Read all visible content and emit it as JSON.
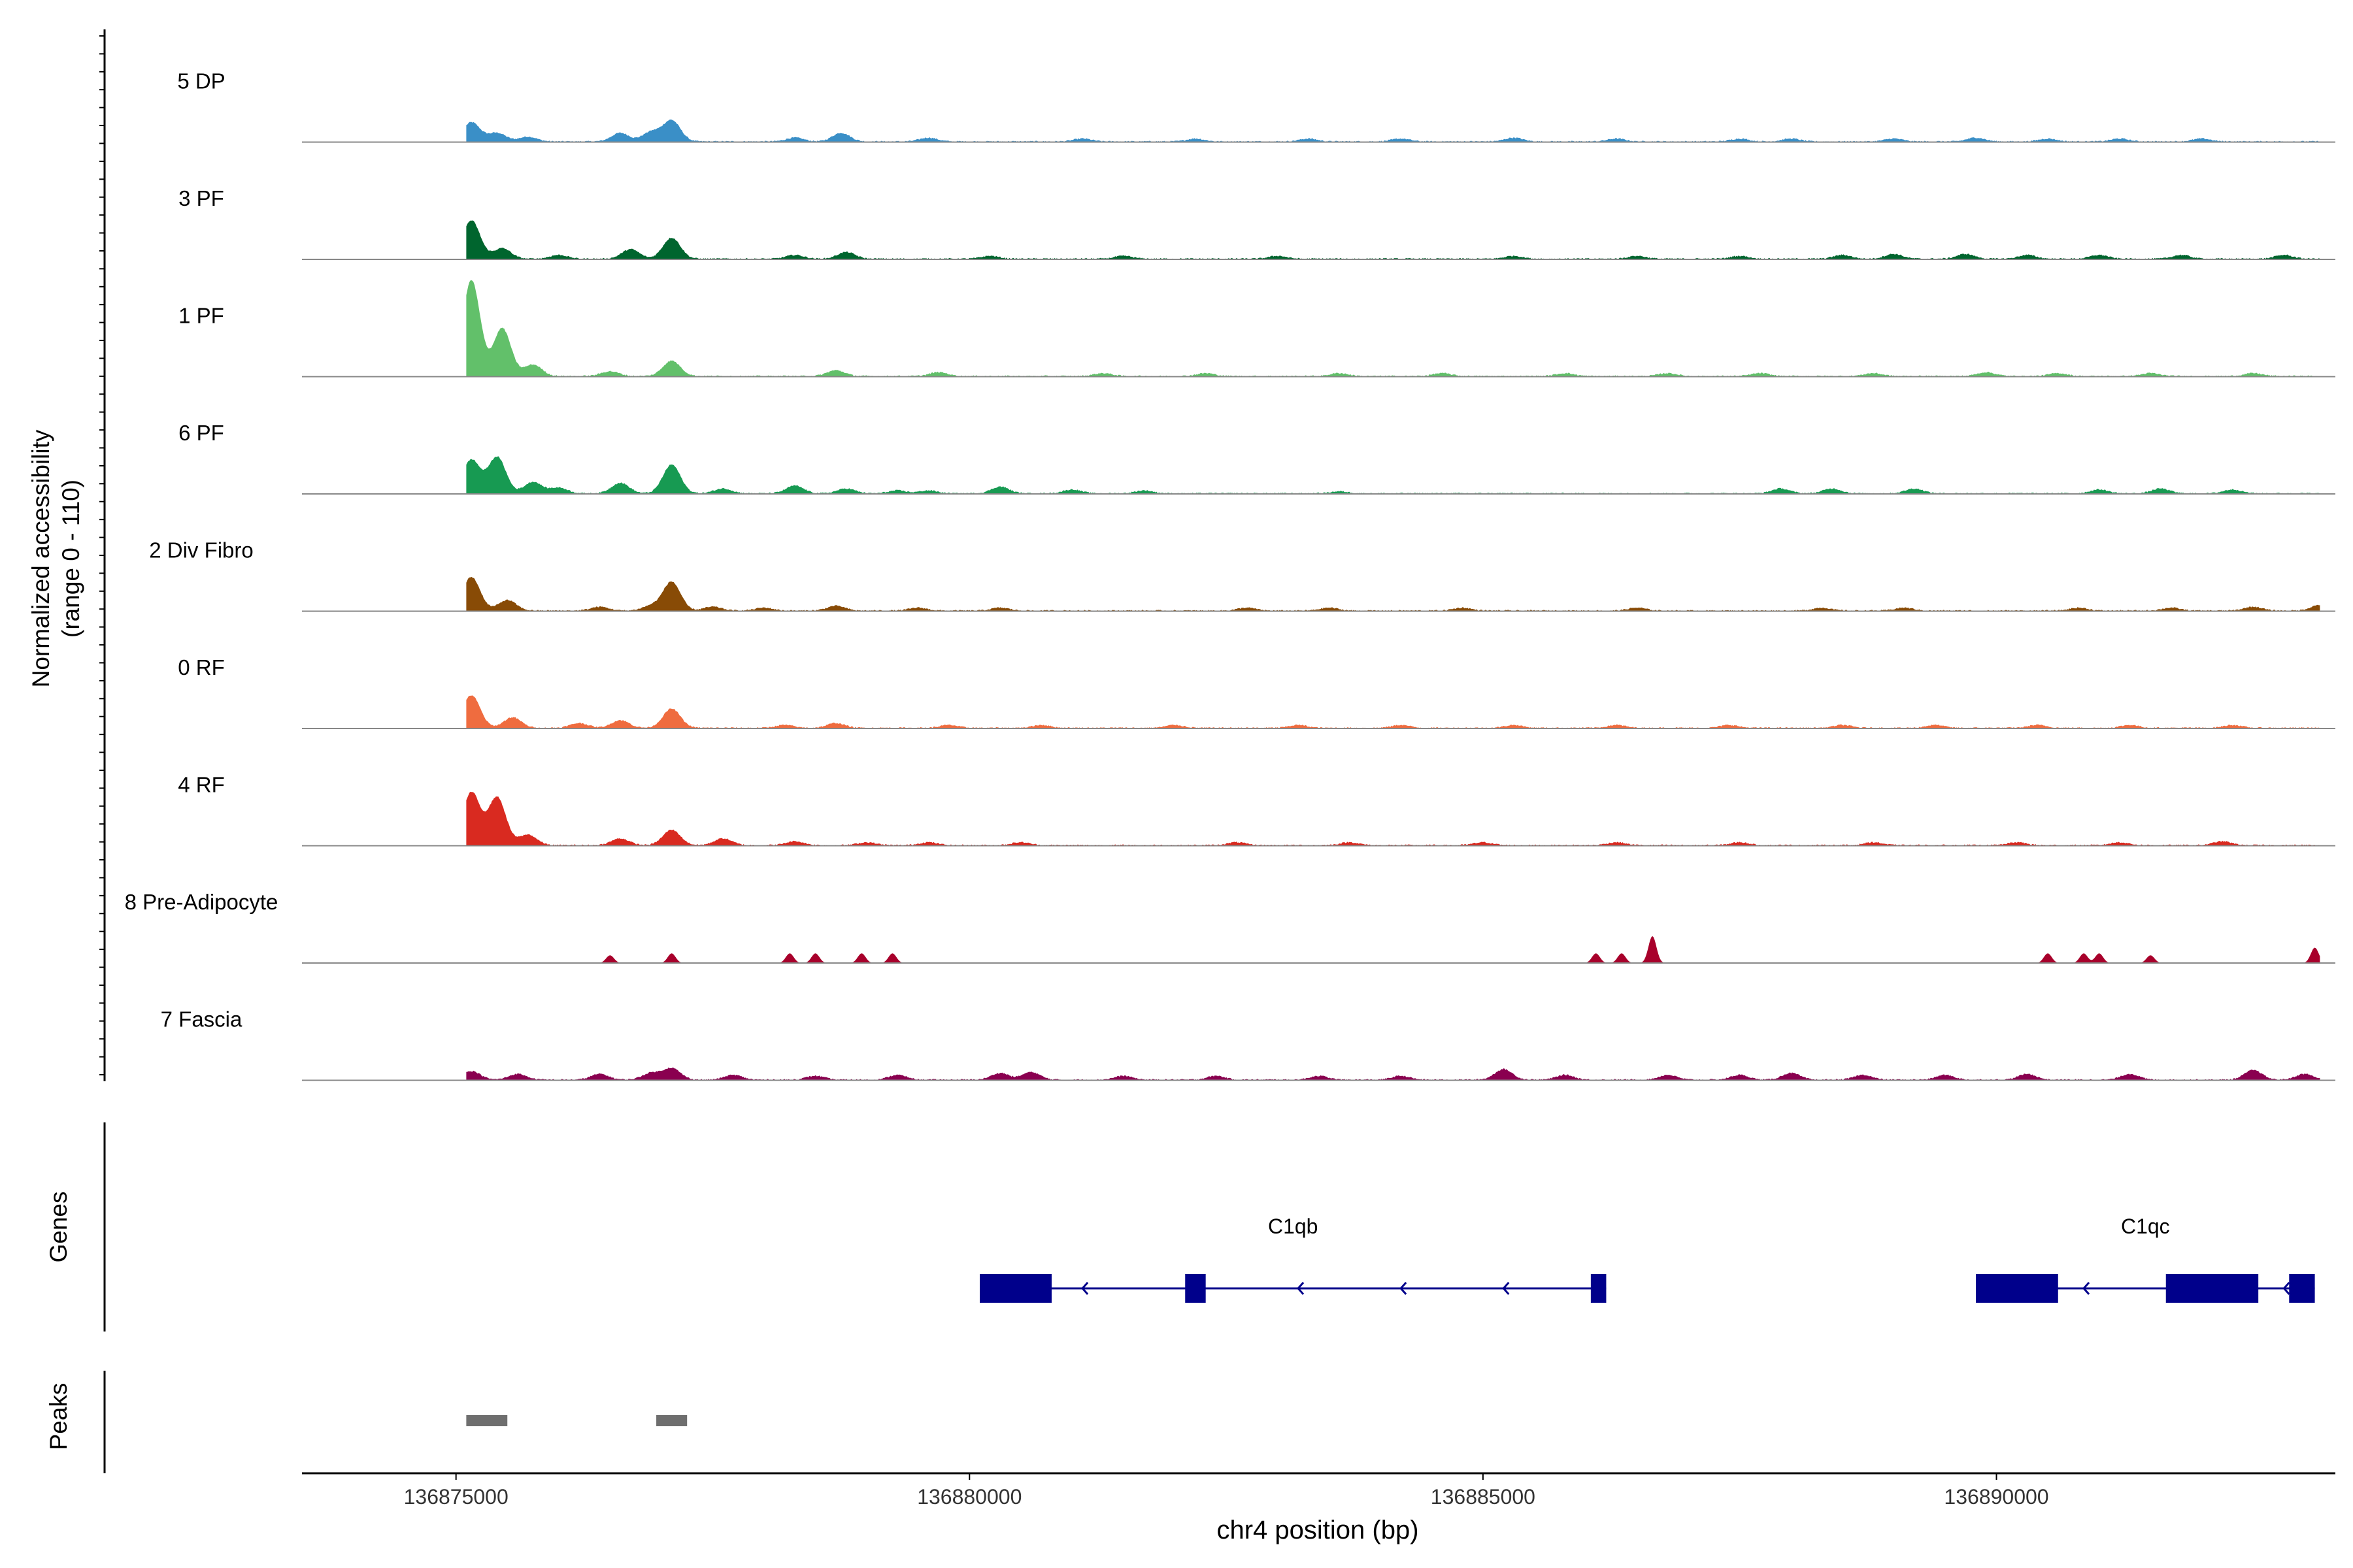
{
  "chart_data": {
    "type": "area",
    "title": "",
    "xlabel": "chr4 position (bp)",
    "ylabel": "Normalized accessibility",
    "ylabel_range": "(range 0 - 110)",
    "xlim": [
      136873500,
      136893300
    ],
    "ylim": [
      0,
      110
    ],
    "x_ticks": [
      136875000,
      136880000,
      136885000,
      136890000
    ],
    "x_tick_labels": [
      "136875000",
      "136880000",
      "136885000",
      "136890000"
    ],
    "tracks": [
      {
        "name": "5 DP",
        "color": "#3a8fc7",
        "peaks": [
          [
            136875150,
            20
          ],
          [
            136875400,
            9
          ],
          [
            136875700,
            5
          ],
          [
            136876600,
            9
          ],
          [
            136876900,
            10
          ],
          [
            136877100,
            22
          ],
          [
            136878300,
            4
          ],
          [
            136878750,
            9
          ],
          [
            136879600,
            4
          ],
          [
            136881100,
            3
          ],
          [
            136882200,
            3
          ],
          [
            136883300,
            3
          ],
          [
            136884200,
            3
          ],
          [
            136885300,
            4
          ],
          [
            136886300,
            3
          ],
          [
            136887500,
            3
          ],
          [
            136888000,
            3
          ],
          [
            136889000,
            3
          ],
          [
            136889800,
            4
          ],
          [
            136890500,
            3
          ],
          [
            136891200,
            3
          ],
          [
            136892000,
            3
          ]
        ]
      },
      {
        "name": "3 PF",
        "color": "#00652e",
        "peaks": [
          [
            136875150,
            40
          ],
          [
            136875450,
            11
          ],
          [
            136876000,
            4
          ],
          [
            136876700,
            10
          ],
          [
            136877100,
            22
          ],
          [
            136878300,
            4
          ],
          [
            136878800,
            7
          ],
          [
            136880200,
            3
          ],
          [
            136881500,
            3
          ],
          [
            136883000,
            3
          ],
          [
            136885300,
            3
          ],
          [
            136886500,
            3
          ],
          [
            136887500,
            3
          ],
          [
            136888500,
            4
          ],
          [
            136889000,
            5
          ],
          [
            136889700,
            5
          ],
          [
            136890300,
            4
          ],
          [
            136891000,
            4
          ],
          [
            136891800,
            4
          ],
          [
            136892800,
            4
          ]
        ]
      },
      {
        "name": "1 PF",
        "color": "#62c06a",
        "peaks": [
          [
            136875150,
            100
          ],
          [
            136875450,
            50
          ],
          [
            136875750,
            12
          ],
          [
            136876500,
            5
          ],
          [
            136877100,
            16
          ],
          [
            136878700,
            6
          ],
          [
            136879700,
            4
          ],
          [
            136881300,
            3
          ],
          [
            136882300,
            3
          ],
          [
            136883600,
            3
          ],
          [
            136884600,
            3
          ],
          [
            136885800,
            3
          ],
          [
            136886800,
            3
          ],
          [
            136887700,
            3
          ],
          [
            136888800,
            3
          ],
          [
            136889900,
            4
          ],
          [
            136890600,
            3
          ],
          [
            136891500,
            3
          ],
          [
            136892500,
            3
          ]
        ]
      },
      {
        "name": "6 PF",
        "color": "#179a52",
        "peaks": [
          [
            136875150,
            35
          ],
          [
            136875400,
            38
          ],
          [
            136875750,
            12
          ],
          [
            136876000,
            6
          ],
          [
            136876600,
            11
          ],
          [
            136877100,
            30
          ],
          [
            136877600,
            5
          ],
          [
            136878300,
            8
          ],
          [
            136878800,
            5
          ],
          [
            136879300,
            3
          ],
          [
            136879600,
            3
          ],
          [
            136880300,
            7
          ],
          [
            136881000,
            4
          ],
          [
            136881700,
            3
          ],
          [
            136883600,
            2
          ],
          [
            136887900,
            5
          ],
          [
            136888400,
            5
          ],
          [
            136889200,
            5
          ],
          [
            136891000,
            4
          ],
          [
            136891600,
            5
          ],
          [
            136892300,
            4
          ]
        ]
      },
      {
        "name": "2 Div Fibro",
        "color": "#884b06",
        "peaks": [
          [
            136875150,
            35
          ],
          [
            136875500,
            11
          ],
          [
            136876400,
            4
          ],
          [
            136876900,
            5
          ],
          [
            136877100,
            30
          ],
          [
            136877500,
            4
          ],
          [
            136878000,
            3
          ],
          [
            136878700,
            5
          ],
          [
            136879500,
            3
          ],
          [
            136880300,
            3
          ],
          [
            136882700,
            3
          ],
          [
            136883500,
            3
          ],
          [
            136884800,
            3
          ],
          [
            136886500,
            3
          ],
          [
            136888300,
            3
          ],
          [
            136889100,
            3
          ],
          [
            136890800,
            3
          ],
          [
            136891700,
            3
          ],
          [
            136892500,
            4
          ],
          [
            136893150,
            6
          ]
        ]
      },
      {
        "name": "0 RF",
        "color": "#ef6c3f",
        "peaks": [
          [
            136875150,
            34
          ],
          [
            136875550,
            11
          ],
          [
            136876200,
            5
          ],
          [
            136876600,
            8
          ],
          [
            136877100,
            20
          ],
          [
            136878200,
            3
          ],
          [
            136878700,
            5
          ],
          [
            136879800,
            3
          ],
          [
            136880700,
            3
          ],
          [
            136882000,
            3
          ],
          [
            136883200,
            3
          ],
          [
            136884200,
            3
          ],
          [
            136885300,
            3
          ],
          [
            136886300,
            3
          ],
          [
            136887400,
            3
          ],
          [
            136888500,
            3
          ],
          [
            136889400,
            3
          ],
          [
            136890400,
            3
          ],
          [
            136891300,
            3
          ],
          [
            136892300,
            3
          ]
        ]
      },
      {
        "name": "4 RF",
        "color": "#d92a20",
        "peaks": [
          [
            136875150,
            55
          ],
          [
            136875400,
            50
          ],
          [
            136875700,
            11
          ],
          [
            136876600,
            7
          ],
          [
            136877100,
            16
          ],
          [
            136877600,
            7
          ],
          [
            136878300,
            4
          ],
          [
            136879000,
            3
          ],
          [
            136879600,
            3
          ],
          [
            136880500,
            3
          ],
          [
            136882600,
            3
          ],
          [
            136883700,
            3
          ],
          [
            136885000,
            3
          ],
          [
            136886300,
            3
          ],
          [
            136887500,
            3
          ],
          [
            136888800,
            3
          ],
          [
            136890200,
            3
          ],
          [
            136891200,
            3
          ],
          [
            136892200,
            4
          ]
        ]
      },
      {
        "name": "8 Pre-Adipocyte",
        "color": "#a8002b",
        "peaks": [
          [
            136876500,
            8
          ],
          [
            136877100,
            10
          ],
          [
            136878250,
            10
          ],
          [
            136878500,
            10
          ],
          [
            136878950,
            10
          ],
          [
            136879250,
            10
          ],
          [
            136886100,
            10
          ],
          [
            136886350,
            10
          ],
          [
            136886650,
            28
          ],
          [
            136890500,
            10
          ],
          [
            136890850,
            10
          ],
          [
            136891000,
            10
          ],
          [
            136891500,
            8
          ],
          [
            136893100,
            16
          ]
        ]
      },
      {
        "name": "7 Fascia",
        "color": "#8a0050",
        "peaks": [
          [
            136875150,
            9
          ],
          [
            136875600,
            6
          ],
          [
            136876400,
            6
          ],
          [
            136876900,
            7
          ],
          [
            136877100,
            12
          ],
          [
            136877700,
            5
          ],
          [
            136878500,
            4
          ],
          [
            136879300,
            5
          ],
          [
            136880300,
            7
          ],
          [
            136880600,
            8
          ],
          [
            136881500,
            4
          ],
          [
            136882400,
            4
          ],
          [
            136883400,
            4
          ],
          [
            136884200,
            4
          ],
          [
            136885200,
            11
          ],
          [
            136885800,
            5
          ],
          [
            136886800,
            5
          ],
          [
            136887500,
            5
          ],
          [
            136888000,
            7
          ],
          [
            136888700,
            5
          ],
          [
            136889500,
            5
          ],
          [
            136890300,
            6
          ],
          [
            136891300,
            6
          ],
          [
            136892500,
            10
          ],
          [
            136893000,
            6
          ]
        ]
      }
    ],
    "genes_label": "Genes",
    "genes": [
      {
        "name": "C1qb",
        "color": "#00008b",
        "start": 136880100,
        "end": 136886200,
        "exons": [
          [
            136880100,
            136880800
          ],
          [
            136882100,
            136882300
          ],
          [
            136886050,
            136886200
          ]
        ],
        "arrows": [
          136881100,
          136883200,
          136884200,
          136885200
        ]
      },
      {
        "name": "C1qc",
        "color": "#00008b",
        "start": 136889800,
        "end": 136893100,
        "exons": [
          [
            136889800,
            136890600
          ],
          [
            136891650,
            136892550
          ],
          [
            136892850,
            136893100
          ]
        ],
        "arrows": [
          136890850,
          136892800
        ]
      }
    ],
    "peaks_label": "Peaks",
    "peak_regions": [
      [
        136875100,
        136875500
      ],
      [
        136876950,
        136877250
      ]
    ],
    "peak_color": "#6e6e6e"
  }
}
